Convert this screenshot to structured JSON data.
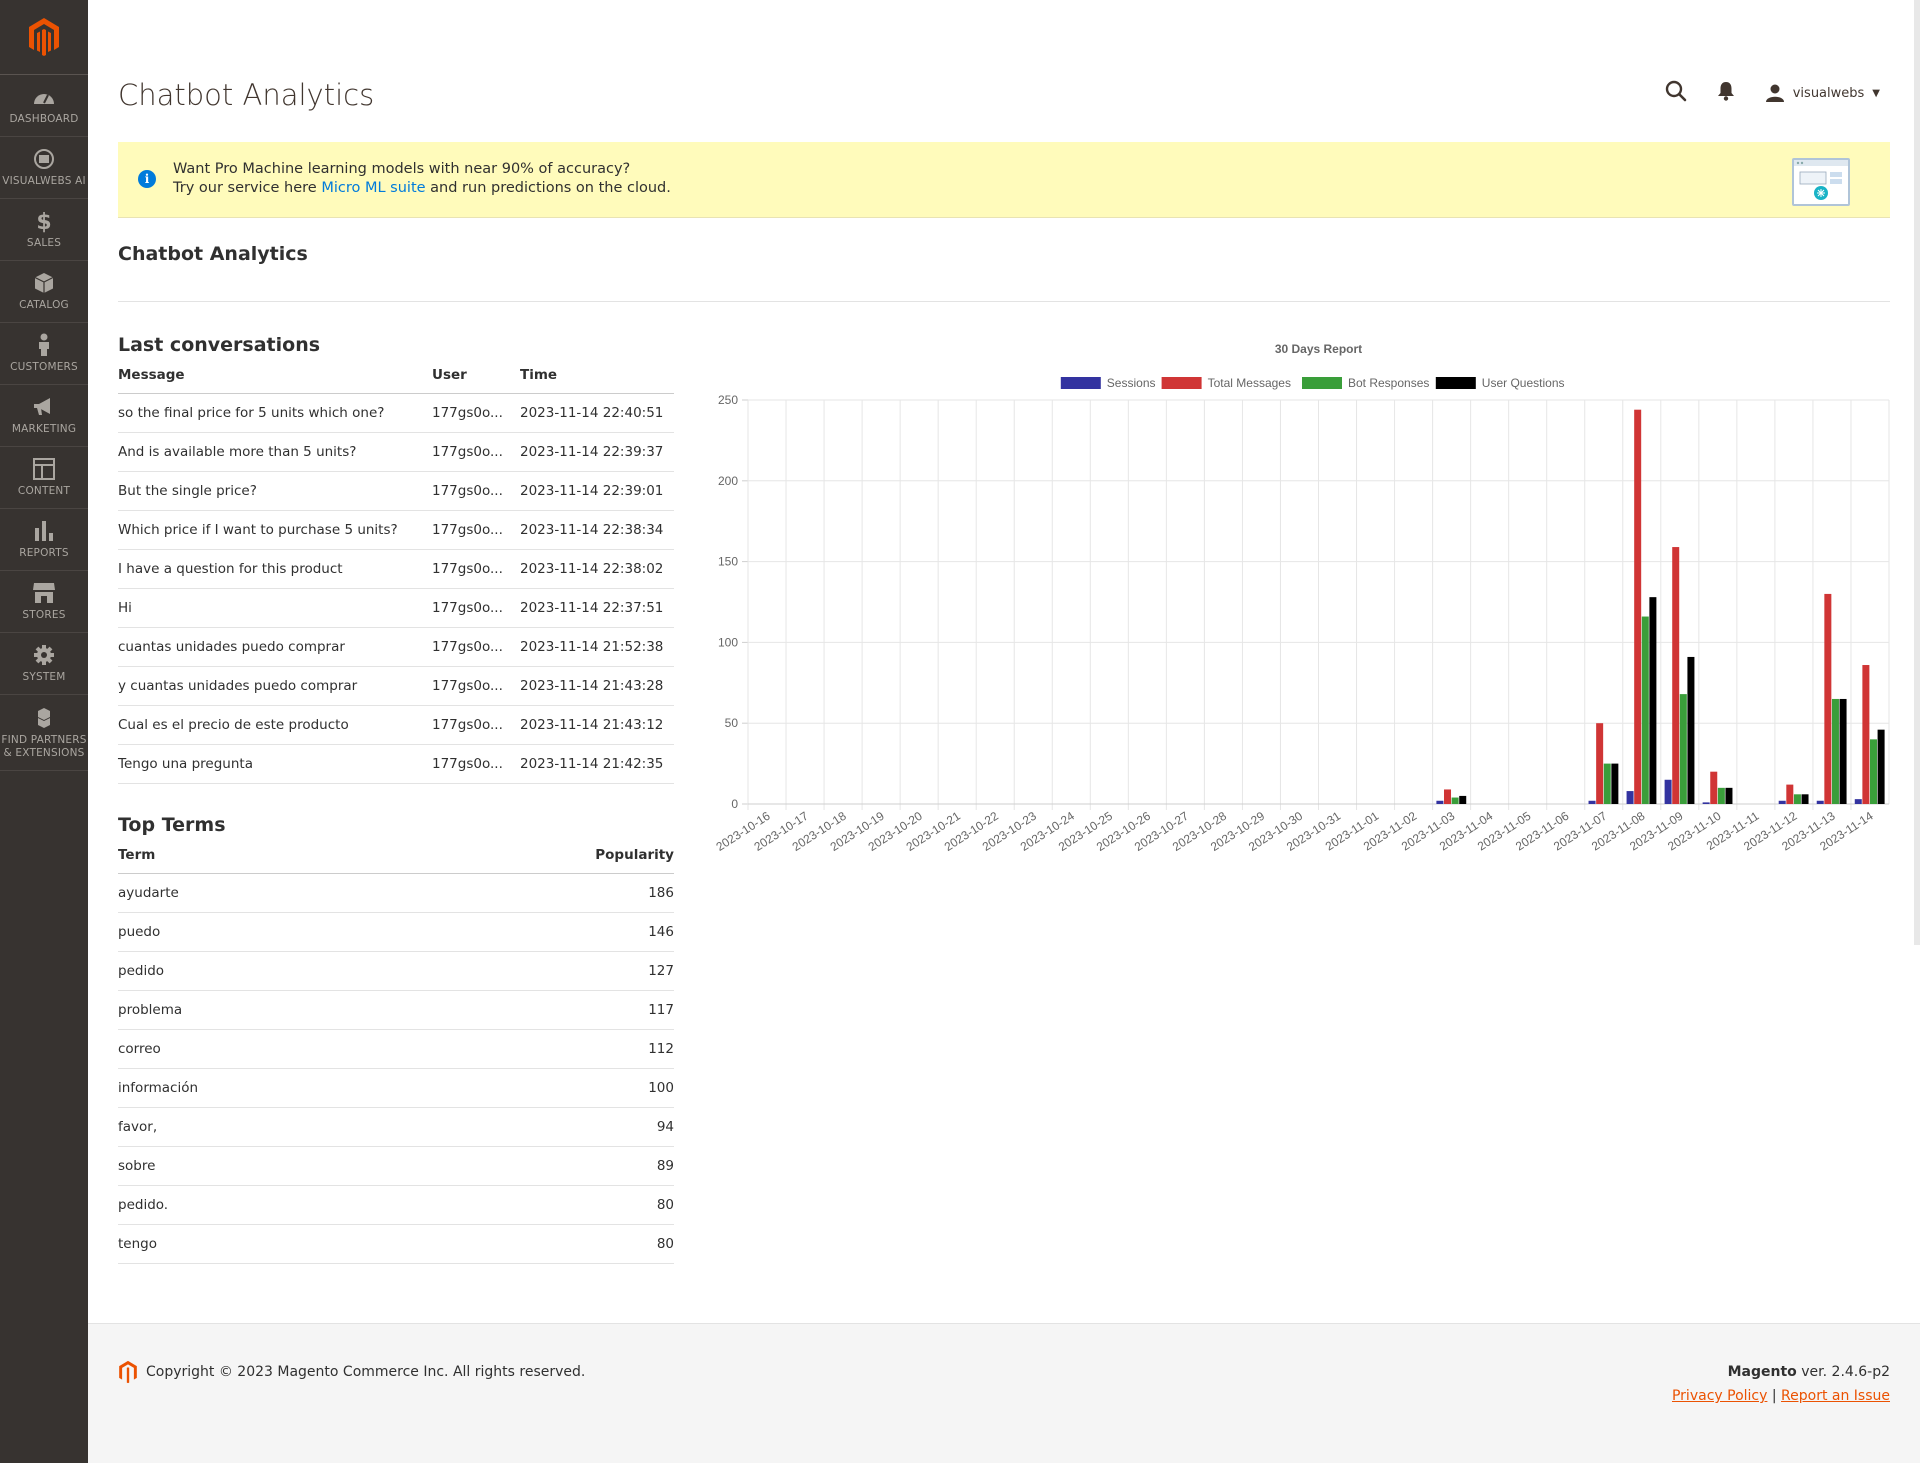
{
  "sidebar": {
    "logo": "magento-logo",
    "items": [
      {
        "label": "DASHBOARD",
        "icon": "dashboard-icon"
      },
      {
        "label": "VISUALWEBS AI",
        "icon": "ai-icon"
      },
      {
        "label": "SALES",
        "icon": "dollar-icon"
      },
      {
        "label": "CATALOG",
        "icon": "box-icon"
      },
      {
        "label": "CUSTOMERS",
        "icon": "person-icon"
      },
      {
        "label": "MARKETING",
        "icon": "megaphone-icon"
      },
      {
        "label": "CONTENT",
        "icon": "layout-icon"
      },
      {
        "label": "REPORTS",
        "icon": "bar-chart-icon"
      },
      {
        "label": "STORES",
        "icon": "store-icon"
      },
      {
        "label": "SYSTEM",
        "icon": "gear-icon"
      },
      {
        "label": "FIND PARTNERS & EXTENSIONS",
        "icon": "cubes-icon"
      }
    ]
  },
  "header": {
    "title": "Chatbot Analytics",
    "username": "visualwebs"
  },
  "notice": {
    "line1": "Want Pro Machine learning models with near 90% of accuracy?",
    "line2_pre": "Try our service here ",
    "link": "Micro ML suite",
    "line2_post": " and run predictions on the cloud."
  },
  "section_title": "Chatbot Analytics",
  "conversations": {
    "title": "Last conversations",
    "headers": [
      "Message",
      "User",
      "Time"
    ],
    "rows": [
      [
        "so the final price for 5 units which one?",
        "177gs0o...",
        "2023-11-14 22:40:51"
      ],
      [
        "And is available more than 5 units?",
        "177gs0o...",
        "2023-11-14 22:39:37"
      ],
      [
        "But the single price?",
        "177gs0o...",
        "2023-11-14 22:39:01"
      ],
      [
        "Which price if I want to purchase 5 units?",
        "177gs0o...",
        "2023-11-14 22:38:34"
      ],
      [
        "I have a question for this product",
        "177gs0o...",
        "2023-11-14 22:38:02"
      ],
      [
        "Hi",
        "177gs0o...",
        "2023-11-14 22:37:51"
      ],
      [
        "cuantas unidades puedo comprar",
        "177gs0o...",
        "2023-11-14 21:52:38"
      ],
      [
        "y cuantas unidades puedo comprar",
        "177gs0o...",
        "2023-11-14 21:43:28"
      ],
      [
        "Cual es el precio de este producto",
        "177gs0o...",
        "2023-11-14 21:43:12"
      ],
      [
        "Tengo una pregunta",
        "177gs0o...",
        "2023-11-14 21:42:35"
      ]
    ]
  },
  "terms": {
    "title": "Top Terms",
    "headers": [
      "Term",
      "Popularity"
    ],
    "rows": [
      [
        "ayudarte",
        "186"
      ],
      [
        "puedo",
        "146"
      ],
      [
        "pedido",
        "127"
      ],
      [
        "problema",
        "117"
      ],
      [
        "correo",
        "112"
      ],
      [
        "información",
        "100"
      ],
      [
        "favor,",
        "94"
      ],
      [
        "sobre",
        "89"
      ],
      [
        "pedido.",
        "80"
      ],
      [
        "tengo",
        "80"
      ]
    ]
  },
  "chart_data": {
    "type": "bar",
    "title": "30 Days Report",
    "legend_position": "top",
    "grid": true,
    "ylim": [
      0,
      250
    ],
    "yticks": [
      0,
      50,
      100,
      150,
      200,
      250
    ],
    "categories": [
      "2023-10-16",
      "2023-10-17",
      "2023-10-18",
      "2023-10-19",
      "2023-10-20",
      "2023-10-21",
      "2023-10-22",
      "2023-10-23",
      "2023-10-24",
      "2023-10-25",
      "2023-10-26",
      "2023-10-27",
      "2023-10-28",
      "2023-10-29",
      "2023-10-30",
      "2023-10-31",
      "2023-11-01",
      "2023-11-02",
      "2023-11-03",
      "2023-11-04",
      "2023-11-05",
      "2023-11-06",
      "2023-11-07",
      "2023-11-08",
      "2023-11-09",
      "2023-11-10",
      "2023-11-11",
      "2023-11-12",
      "2023-11-13",
      "2023-11-14"
    ],
    "series": [
      {
        "name": "Sessions",
        "color": "#3333a0",
        "values": [
          0,
          0,
          0,
          0,
          0,
          0,
          0,
          0,
          0,
          0,
          0,
          0,
          0,
          0,
          0,
          0,
          0,
          0,
          2,
          0,
          0,
          0,
          2,
          8,
          15,
          1,
          0,
          2,
          2,
          3
        ]
      },
      {
        "name": "Total Messages",
        "color": "#d03535",
        "values": [
          0,
          0,
          0,
          0,
          0,
          0,
          0,
          0,
          0,
          0,
          0,
          0,
          0,
          0,
          0,
          0,
          0,
          0,
          9,
          0,
          0,
          0,
          50,
          244,
          159,
          20,
          0,
          12,
          130,
          86
        ]
      },
      {
        "name": "Bot Responses",
        "color": "#3a9e3a",
        "values": [
          0,
          0,
          0,
          0,
          0,
          0,
          0,
          0,
          0,
          0,
          0,
          0,
          0,
          0,
          0,
          0,
          0,
          0,
          4,
          0,
          0,
          0,
          25,
          116,
          68,
          10,
          0,
          6,
          65,
          40
        ]
      },
      {
        "name": "User Questions",
        "color": "#000000",
        "values": [
          0,
          0,
          0,
          0,
          0,
          0,
          0,
          0,
          0,
          0,
          0,
          0,
          0,
          0,
          0,
          0,
          0,
          0,
          5,
          0,
          0,
          0,
          25,
          128,
          91,
          10,
          0,
          6,
          65,
          46
        ]
      }
    ]
  },
  "footer": {
    "copyright": "Copyright © 2023 Magento Commerce Inc. All rights reserved.",
    "brand": "Magento",
    "version": " ver. 2.4.6-p2",
    "privacy": "Privacy Policy",
    "sep": " | ",
    "report": "Report an Issue"
  }
}
